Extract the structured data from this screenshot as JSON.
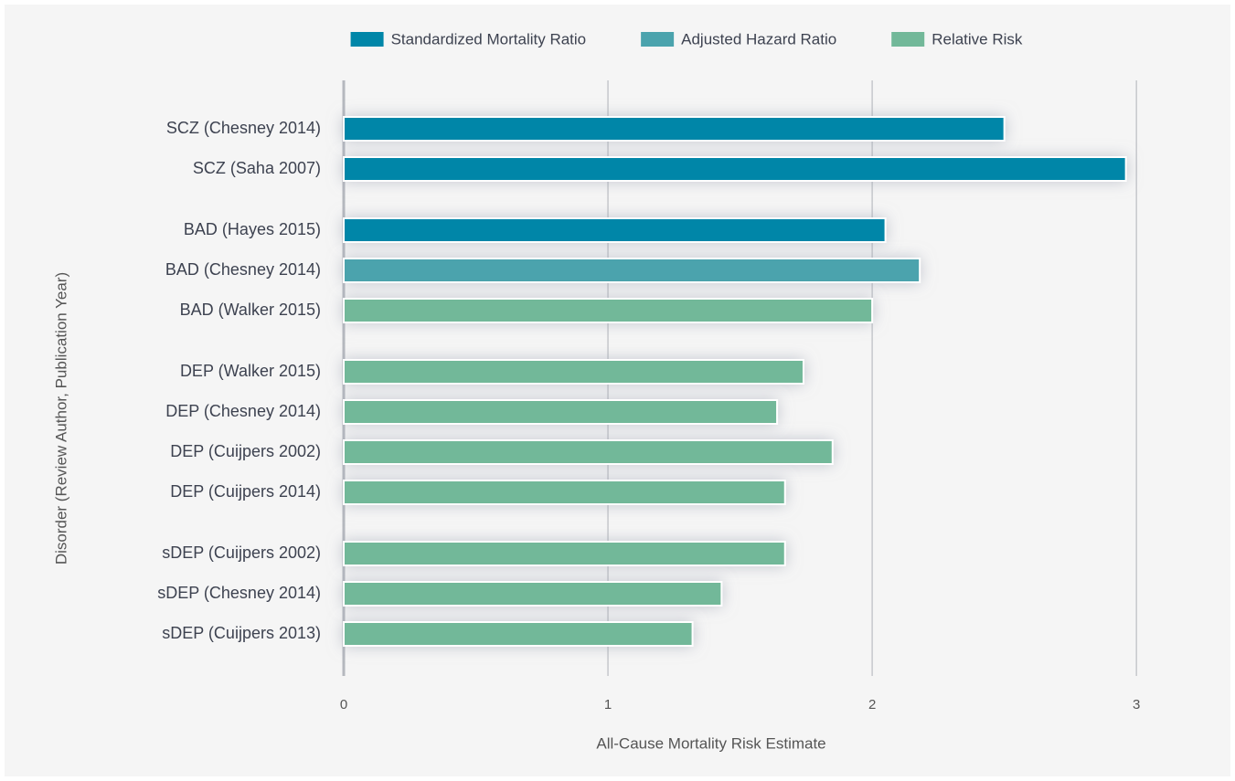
{
  "chart_data": {
    "type": "bar",
    "orientation": "horizontal",
    "x_label": "All-Cause Mortality Risk Estimate",
    "y_label": "Disorder (Review Author, Publication Year)",
    "categories": [
      "SCZ (Chesney 2014)",
      "SCZ (Saha 2007)",
      "BAD (Hayes 2015)",
      "BAD (Chesney 2014)",
      "BAD (Walker 2015)",
      "DEP (Walker 2015)",
      "DEP (Chesney 2014)",
      "DEP (Cuijpers 2002)",
      "DEP (Cuijpers 2014)",
      "sDEP (Cuijpers 2002)",
      "sDEP (Chesney 2014)",
      "sDEP (Cuijpers 2013)"
    ],
    "series": [
      {
        "name": "Standardized Mortality Ratio",
        "color": "#0086a8",
        "values": [
          2.5,
          2.96,
          2.05,
          null,
          null,
          null,
          null,
          null,
          null,
          null,
          null,
          null
        ]
      },
      {
        "name": "Adjusted Hazard Ratio",
        "color": "#4ba3ad",
        "values": [
          null,
          null,
          null,
          2.18,
          null,
          null,
          null,
          null,
          null,
          null,
          null,
          null
        ]
      },
      {
        "name": "Relative Risk",
        "color": "#72b899",
        "values": [
          null,
          null,
          null,
          null,
          2.0,
          1.74,
          1.64,
          1.85,
          1.67,
          1.67,
          1.43,
          1.32
        ]
      }
    ],
    "xlim": [
      0,
      3.2
    ],
    "xticks": [
      0,
      1,
      2,
      3
    ],
    "grid": true
  }
}
